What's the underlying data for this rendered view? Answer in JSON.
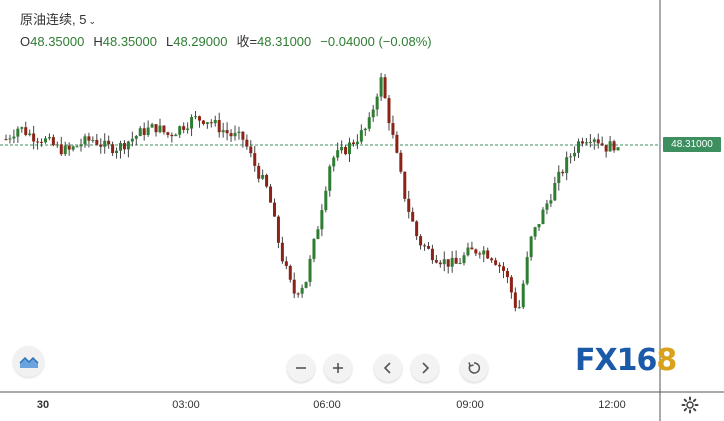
{
  "header": {
    "symbol_title": "原油连续, 5",
    "open_label": "O",
    "open_value": "48.35000",
    "high_label": "H",
    "high_value": "48.35000",
    "low_label": "L",
    "low_value": "48.29000",
    "close_label": "收=",
    "close_value": "48.31000",
    "change_value": "−0.04000 (−0.08%)"
  },
  "price_tag": "48.31000",
  "x_axis": {
    "ticks": [
      "30",
      "03:00",
      "06:00",
      "09:00",
      "12:00"
    ]
  },
  "logo": {
    "part1": "FX",
    "part2": "16",
    "part3": "8"
  },
  "icons": {
    "chart_type": "area-chart-icon",
    "zoom_out": "minus-icon",
    "zoom_in": "plus-icon",
    "scroll_left": "chevron-left-icon",
    "scroll_right": "chevron-right-icon",
    "reset": "reset-icon",
    "settings": "gear-icon"
  },
  "colors": {
    "up": "#2e7d32",
    "down": "#8b2316",
    "last_price": "#3d8f5f"
  },
  "chart_data": {
    "type": "candlestick",
    "title": "原油连续, 5",
    "last_price": 48.31,
    "open": 48.35,
    "high": 48.35,
    "low": 48.29,
    "close": 48.31,
    "x_ticks": [
      "30",
      "03:00",
      "06:00",
      "09:00",
      "12:00"
    ],
    "trend": [
      48.33,
      48.36,
      48.34,
      48.33,
      48.31,
      48.3,
      48.32,
      48.33,
      48.31,
      48.31,
      48.33,
      48.35,
      48.36,
      48.34,
      48.36,
      48.38,
      48.38,
      48.36,
      48.34,
      48.33,
      48.26,
      48.2,
      48.05,
      47.95,
      47.98,
      48.12,
      48.28,
      48.3,
      48.33,
      48.36,
      48.48,
      48.33,
      48.18,
      48.08,
      48.05,
      48.03,
      48.02,
      48.05,
      48.06,
      48.04,
      48.0,
      47.9,
      48.08,
      48.15,
      48.22,
      48.28,
      48.33,
      48.34,
      48.31,
      48.32
    ]
  }
}
